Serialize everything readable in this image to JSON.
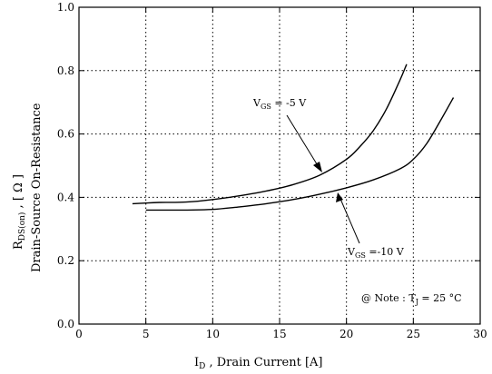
{
  "chart_data": {
    "type": "line",
    "xlim": [
      0,
      30
    ],
    "ylim": [
      0.0,
      1.0
    ],
    "x_ticks": [
      0,
      5,
      10,
      15,
      20,
      25,
      30
    ],
    "y_ticks": [
      0.0,
      0.2,
      0.4,
      0.6,
      0.8,
      1.0
    ],
    "y_tick_labels": [
      "0.0",
      "0.2",
      "0.4",
      "0.6",
      "0.8",
      "1.0"
    ],
    "grid": true,
    "xlabel": {
      "main": "I",
      "sub": "D",
      "rest": " , Drain Current  [A]"
    },
    "ylabel": {
      "line1_main": "R",
      "line1_sub": "DS(on)",
      "line1_rest": " , [ Ω ]",
      "line2": "Drain-Source On-Resistance"
    },
    "series": [
      {
        "name": "V_GS = -5 V",
        "x": [
          4,
          5,
          6,
          8,
          10,
          12,
          14,
          16,
          18,
          20,
          21,
          22,
          23,
          24,
          24.5
        ],
        "y": [
          0.38,
          0.382,
          0.384,
          0.385,
          0.393,
          0.405,
          0.42,
          0.44,
          0.47,
          0.52,
          0.56,
          0.61,
          0.68,
          0.77,
          0.82
        ]
      },
      {
        "name": "V_GS = -10 V",
        "x": [
          5,
          8,
          10,
          12,
          14,
          16,
          18,
          20,
          22,
          24,
          25,
          26,
          27,
          28
        ],
        "y": [
          0.36,
          0.36,
          0.362,
          0.37,
          0.38,
          0.393,
          0.41,
          0.43,
          0.455,
          0.49,
          0.52,
          0.57,
          0.64,
          0.715
        ]
      }
    ],
    "annotations": [
      {
        "main": "V",
        "sub": "GS",
        "rest": " = -5 V"
      },
      {
        "main": "V",
        "sub": "GS",
        "rest": " =-10 V"
      },
      {
        "prefix": "@ Note : T",
        "sub": "J",
        "rest": " = 25 °C"
      }
    ]
  }
}
